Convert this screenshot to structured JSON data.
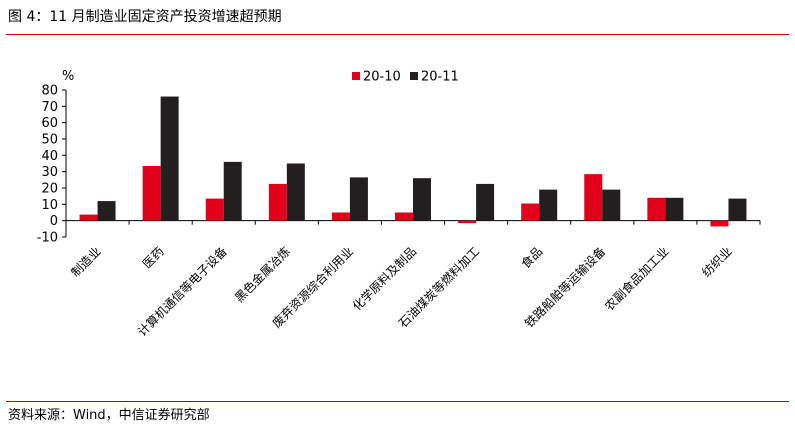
{
  "figure": {
    "title": "图 4：11 月制造业固定资产投资增速超预期",
    "source": "资料来源：Wind，中信证券研究部"
  },
  "colors": {
    "series_2010": "#e3001b",
    "series_2011": "#231f20",
    "rule": "#c00000"
  },
  "chart_data": {
    "type": "bar",
    "unit_label": "%",
    "categories": [
      "制造业",
      "医药",
      "计算机通信等电子设备",
      "黑色金属冶炼",
      "废弃资源综合利用业",
      "化学原料及制品",
      "石油煤炭等燃料加工",
      "食品",
      "铁路船舶等运输设备",
      "农副食品加工业",
      "纺织业"
    ],
    "series": [
      {
        "name": "20-10",
        "values": [
          3.7,
          33.5,
          13.5,
          22.5,
          5.0,
          5.0,
          -1.5,
          10.5,
          28.5,
          14.0,
          -3.5
        ]
      },
      {
        "name": "20-11",
        "values": [
          12.0,
          76.0,
          36.0,
          35.0,
          26.5,
          26.0,
          22.5,
          19.0,
          19.0,
          14.0,
          13.5
        ]
      }
    ],
    "ylim": [
      -10,
      80
    ],
    "yticks": [
      -10,
      0,
      10,
      20,
      30,
      40,
      50,
      60,
      70,
      80
    ],
    "legend_position": "top-center",
    "grid": false
  }
}
